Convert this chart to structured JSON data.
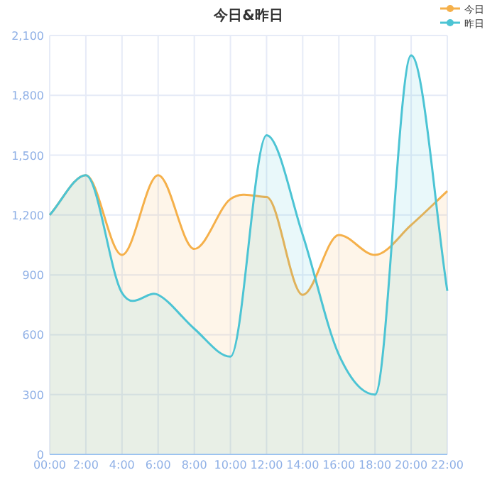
{
  "chart_data": {
    "type": "area",
    "title": "今日&昨日",
    "categories": [
      "00:00",
      "2:00",
      "4:00",
      "6:00",
      "8:00",
      "10:00",
      "12:00",
      "14:00",
      "16:00",
      "18:00",
      "20:00",
      "22:00"
    ],
    "series": [
      {
        "name": "今日",
        "color": "#f5b04a",
        "values": [
          1200,
          1400,
          1000,
          1400,
          1030,
          1280,
          1290,
          800,
          1100,
          1000,
          1150,
          1320
        ]
      },
      {
        "name": "昨日",
        "color": "#4cc4d4",
        "values": [
          1200,
          1400,
          810,
          800,
          630,
          490,
          1600,
          1100,
          500,
          300,
          2000,
          820
        ]
      }
    ],
    "ylim": [
      0,
      2100
    ],
    "yticks": [
      {
        "value": 0,
        "label": "0"
      },
      {
        "value": 300,
        "label": "300"
      },
      {
        "value": 600,
        "label": "600"
      },
      {
        "value": 900,
        "label": "900"
      },
      {
        "value": 1200,
        "label": "1,200"
      },
      {
        "value": 1500,
        "label": "1,500"
      },
      {
        "value": 1800,
        "label": "1,800"
      },
      {
        "value": 2100,
        "label": "2,100"
      }
    ],
    "grid": true,
    "legend": "top right"
  }
}
